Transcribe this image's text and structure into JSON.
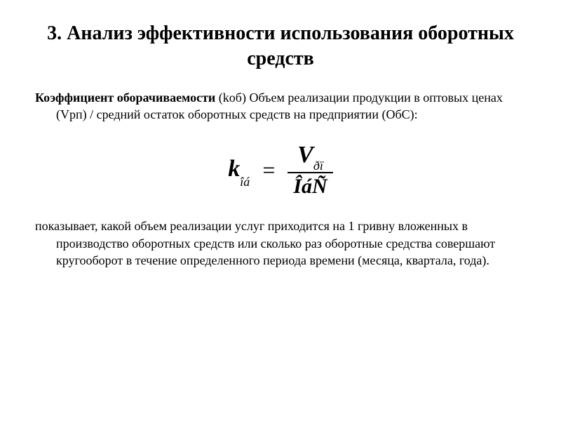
{
  "title": "3. Анализ эффективности использования оборотных средств",
  "paragraph1": {
    "bold_lead": "Коэффициент оборачиваемости",
    "rest": " (kоб) Объем реализации продукции в оптовых ценах (Vрп) / средний остаток оборотных средств на предприятии (ОбС):"
  },
  "formula": {
    "lhs_var": "k",
    "lhs_sub": "îá",
    "eq": "=",
    "numerator_var": "V",
    "numerator_sub": "ðï",
    "denominator": "ÎáÑ",
    "styling": {
      "font_family": "Times New Roman",
      "font_style": "italic",
      "lhs_fontsize": 34,
      "sub_fontsize": 18,
      "frac_fontsize": 30,
      "line_thickness": 2,
      "color": "#000000"
    }
  },
  "paragraph2": "показывает, какой объем реализации услуг приходится на 1 гривну вложенных в производство оборотных средств или сколько раз оборотные средства совершают кругооборот в течение определенного периода времени (месяца, квартала, года).",
  "colors": {
    "background": "#ffffff",
    "text": "#000000"
  },
  "typography": {
    "title_fontsize": 28,
    "title_weight": "bold",
    "body_fontsize": 18,
    "body_family": "Georgia, Times New Roman, serif"
  }
}
